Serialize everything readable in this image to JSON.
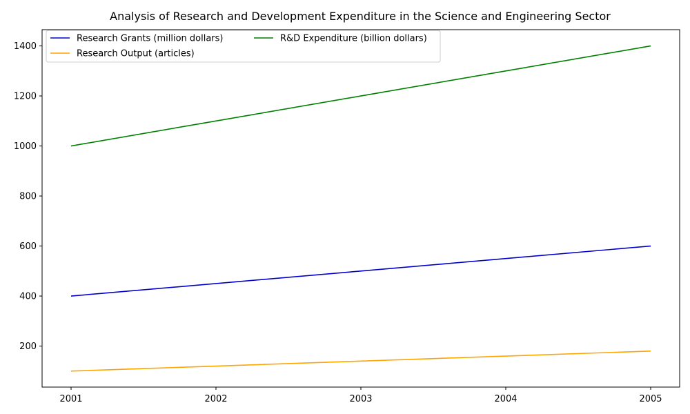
{
  "chart_data": {
    "type": "line",
    "title": "Analysis of Research and Development Expenditure in the Science and Engineering Sector",
    "xlabel": "",
    "ylabel": "",
    "x": [
      "2001",
      "2002",
      "2003",
      "2004",
      "2005"
    ],
    "xlim": [
      2000.8,
      2005.2
    ],
    "ylim": [
      36,
      1465
    ],
    "yticks": [
      "200",
      "400",
      "600",
      "800",
      "1000",
      "1200",
      "1400"
    ],
    "grid": false,
    "legend_placement": "top-left",
    "legend_columns": 2,
    "series": [
      {
        "name": "Research Grants (million dollars)",
        "color": "#0000cd",
        "values": [
          400,
          450,
          500,
          550,
          600
        ]
      },
      {
        "name": "Research Output (articles)",
        "color": "#ffa500",
        "values": [
          100,
          120,
          140,
          160,
          180
        ]
      },
      {
        "name": "R&D Expenditure (billion dollars)",
        "color": "#008000",
        "values": [
          1000,
          1100,
          1200,
          1300,
          1400
        ]
      }
    ]
  }
}
